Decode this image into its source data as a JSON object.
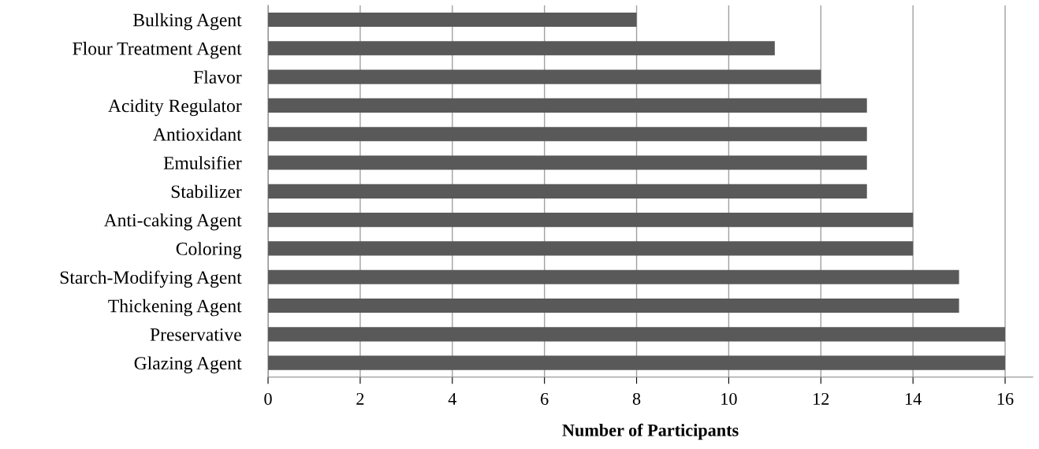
{
  "chart_data": {
    "type": "bar",
    "orientation": "horizontal",
    "xlabel": "Number of Participants",
    "categories": [
      "Bulking Agent",
      "Flour Treatment Agent",
      "Flavor",
      "Acidity Regulator",
      "Antioxidant",
      "Emulsifier",
      "Stabilizer",
      "Anti-caking Agent",
      "Coloring",
      "Starch-Modifying Agent",
      "Thickening Agent",
      "Preservative",
      "Glazing Agent"
    ],
    "values": [
      8,
      11,
      12,
      13,
      13,
      13,
      13,
      14,
      14,
      15,
      15,
      16,
      16
    ],
    "color": "#595959",
    "xlim": [
      0,
      16.6
    ],
    "xticks": [
      0,
      2,
      4,
      6,
      8,
      10,
      12,
      14,
      16
    ],
    "grid": "x",
    "legend": false
  }
}
